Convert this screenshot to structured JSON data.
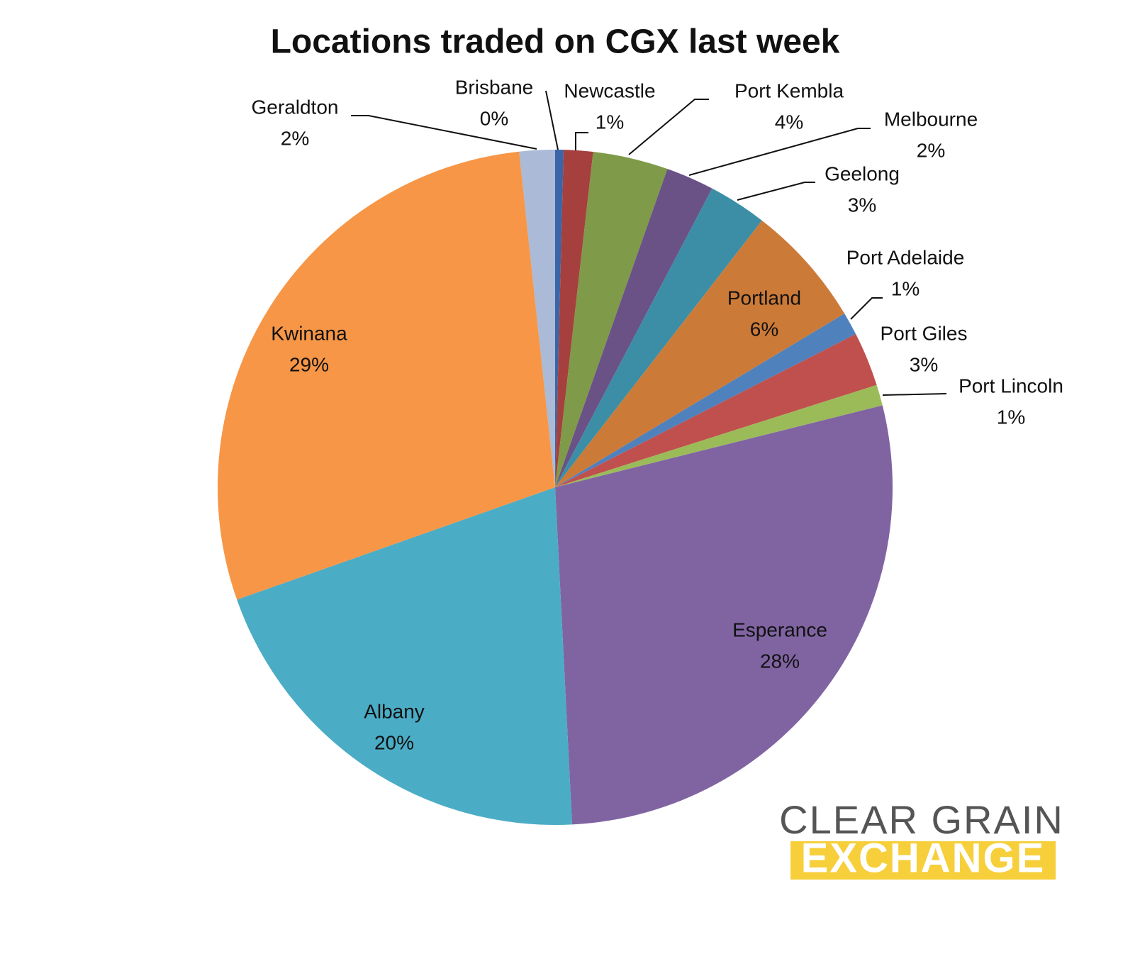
{
  "chart_data": {
    "type": "pie",
    "title": "Locations traded on CGX last week",
    "categories": [
      "Brisbane",
      "Newcastle",
      "Port Kembla",
      "Melbourne",
      "Geelong",
      "Portland",
      "Port Adelaide",
      "Port Giles",
      "Port Lincoln",
      "Esperance",
      "Albany",
      "Kwinana",
      "Geraldton"
    ],
    "values": [
      0.4,
      1.4,
      3.6,
      2.3,
      2.8,
      5.9,
      1.1,
      2.6,
      1.0,
      28.1,
      20.4,
      28.7,
      1.7
    ],
    "value_labels": [
      "0%",
      "1%",
      "4%",
      "2%",
      "3%",
      "6%",
      "1%",
      "3%",
      "1%",
      "28%",
      "20%",
      "29%",
      "2%"
    ],
    "colors": [
      "#3a65a8",
      "#a5403e",
      "#7f9a48",
      "#6a5186",
      "#3b8ea5",
      "#cc7a38",
      "#4f81bd",
      "#c0504d",
      "#9bbb59",
      "#8064a2",
      "#4bacc6",
      "#f79646",
      "#aabad7"
    ]
  },
  "logo": {
    "line1": "CLEAR GRAIN",
    "line2": "EXCHANGE"
  }
}
